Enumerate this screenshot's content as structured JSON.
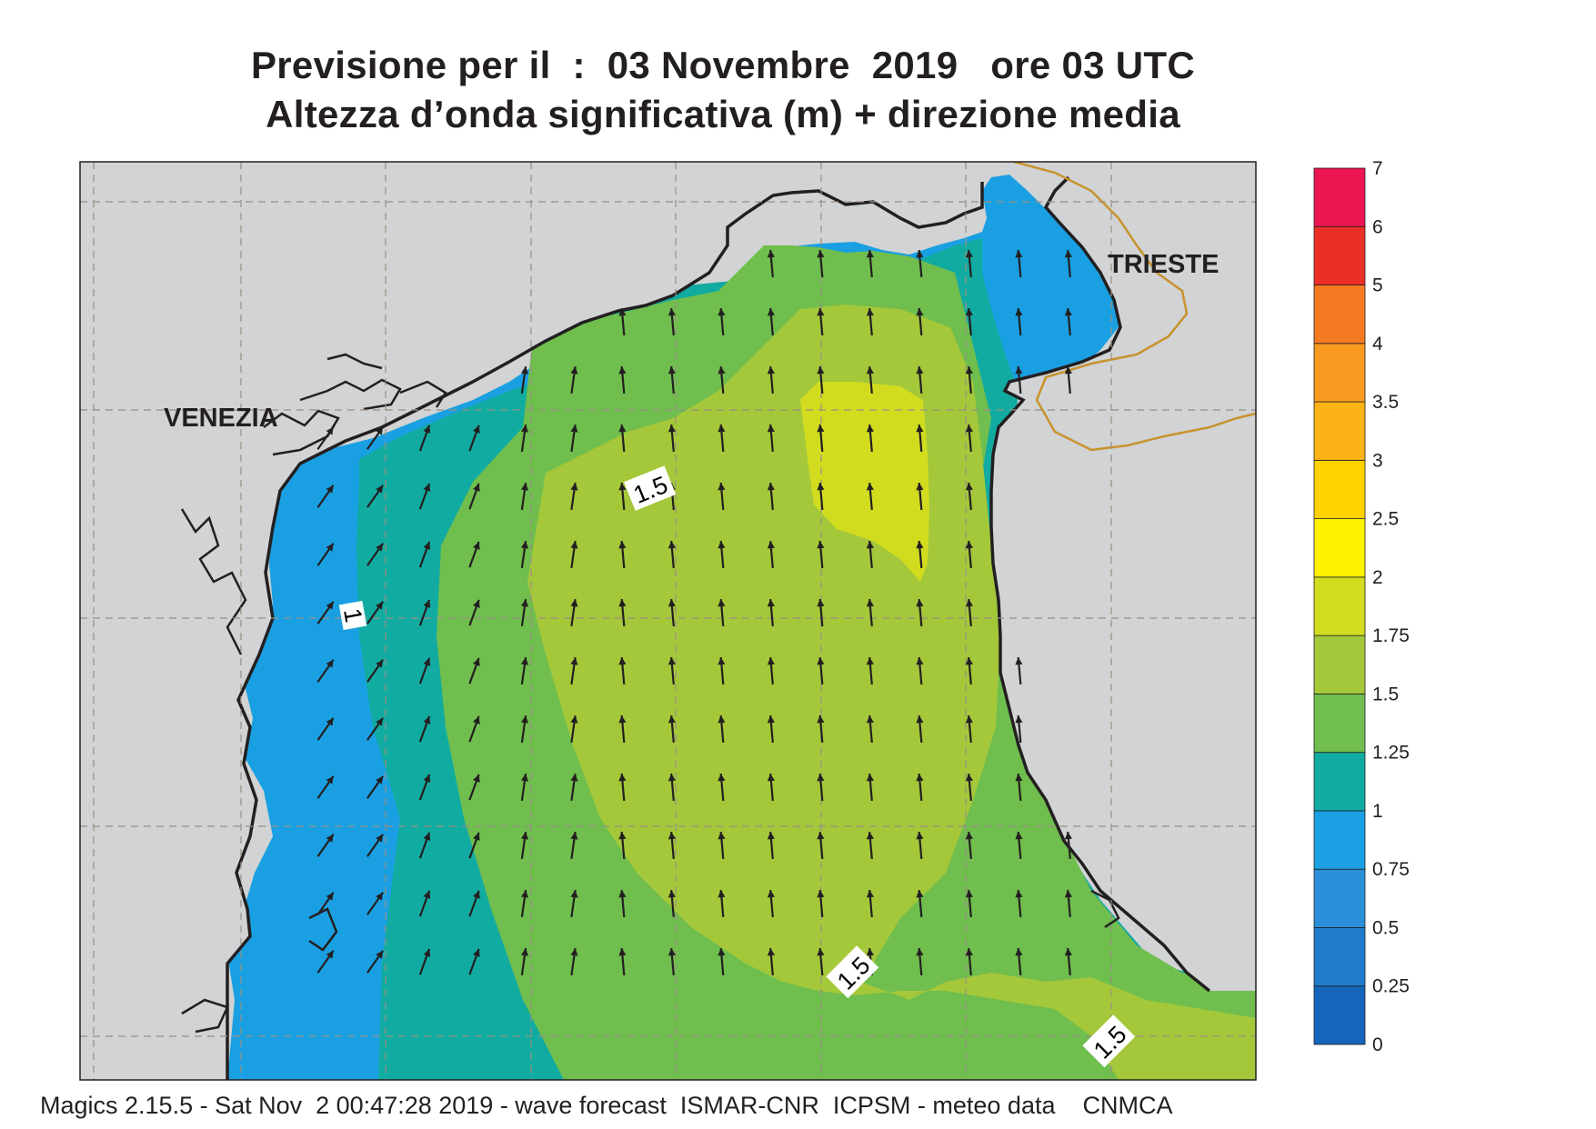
{
  "title_line1": "Previsione per il  :  03 Novembre  2019   ore 03 UTC",
  "title_line2": "Altezza d’onda significativa (m) + direzione media",
  "footer": "Magics 2.15.5 - Sat Nov  2 00:47:28 2019 - wave forecast  ISMAR-CNR  ICPSM - meteo data    CNMCA",
  "places": {
    "venezia": "VENEZIA",
    "trieste": "TRIESTE"
  },
  "contour_labels": [
    "1.5",
    "1",
    "1.5",
    "1.5"
  ],
  "colorbar": {
    "levels": [
      "0",
      "0.25",
      "0.5",
      "0.75",
      "1",
      "1.25",
      "1.5",
      "1.75",
      "2",
      "2.5",
      "3",
      "3.5",
      "4",
      "5",
      "6",
      "7"
    ],
    "colors": [
      "#1565bd",
      "#1f7ccb",
      "#2a8fd8",
      "#1aa0e2",
      "#12aba1",
      "#6fbe4e",
      "#a4c83a",
      "#d2dc1f",
      "#fff200",
      "#ffd200",
      "#fbb315",
      "#f79a1f",
      "#f47a22",
      "#ec2f26",
      "#ec1652"
    ]
  },
  "colors": {
    "land": "#d1d3d4",
    "coast": "#231f20",
    "border": "#c8932e",
    "grid": "#9a8f84",
    "arrow": "#231f20"
  }
}
